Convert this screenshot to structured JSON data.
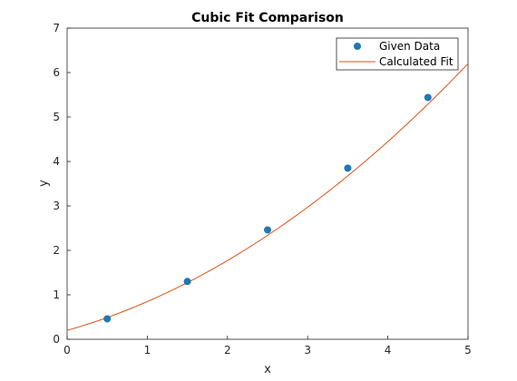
{
  "chart_data": {
    "type": "line",
    "title": "Cubic Fit Comparison",
    "xlabel": "x",
    "ylabel": "y",
    "xlim": [
      0,
      5
    ],
    "ylim": [
      0,
      7
    ],
    "xticks": [
      "0",
      "1",
      "2",
      "3",
      "4",
      "5"
    ],
    "yticks": [
      "0",
      "1",
      "2",
      "3",
      "4",
      "5",
      "6",
      "7"
    ],
    "grid": false,
    "legend_position": "top-right",
    "series": [
      {
        "name": "Given Data",
        "kind": "scatter",
        "color": "#1f77b4",
        "x": [
          0.5,
          1.5,
          2.5,
          3.5,
          4.5
        ],
        "y": [
          0.46,
          1.3,
          2.46,
          3.85,
          5.44
        ]
      },
      {
        "name": "Calculated Fit",
        "kind": "line",
        "color": "#d95319",
        "coefficients": [
          0.2,
          0.51,
          0.138,
          0.0
        ],
        "x_range": [
          0,
          5
        ]
      }
    ]
  }
}
